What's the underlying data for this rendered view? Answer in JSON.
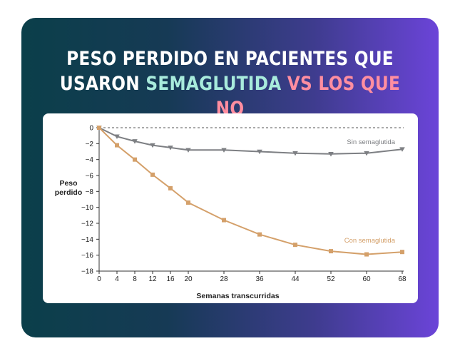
{
  "headline": {
    "line1": "PESO PERDIDO EN PACIENTES QUE",
    "line2_prefix": "USARON",
    "highlight1": "SEMAGLUTIDA",
    "vs": "VS",
    "line2_suffix": "LOS QUE NO"
  },
  "colors": {
    "highlight1": "#a8ebdc",
    "highlight2": "#ff8ea0",
    "series_without": "#7d7f83",
    "series_with": "#d4a06a"
  },
  "chart_data": {
    "type": "line",
    "xlabel": "Semanas transcurridas",
    "ylabel": "Peso\nperdido",
    "x": [
      0,
      4,
      8,
      12,
      16,
      20,
      28,
      36,
      44,
      52,
      60,
      68
    ],
    "xticks": [
      0,
      4,
      8,
      12,
      16,
      20,
      28,
      36,
      44,
      52,
      60,
      68
    ],
    "yticks": [
      0,
      -2,
      -4,
      -6,
      -8,
      -10,
      -12,
      -14,
      -16,
      -18
    ],
    "ylim": [
      -18,
      0
    ],
    "xlim": [
      0,
      68
    ],
    "grid": false,
    "reference_line_y": 0,
    "series": [
      {
        "name": "Sin semaglutida",
        "marker": "triangle-down",
        "values": [
          0,
          -1.1,
          -1.7,
          -2.2,
          -2.5,
          -2.8,
          -2.8,
          -3.0,
          -3.2,
          -3.3,
          -3.2,
          -2.7
        ]
      },
      {
        "name": "Con semaglutida",
        "marker": "square",
        "values": [
          0,
          -2.2,
          -4.0,
          -5.9,
          -7.6,
          -9.4,
          -11.6,
          -13.4,
          -14.7,
          -15.5,
          -15.9,
          -15.6
        ]
      }
    ]
  }
}
